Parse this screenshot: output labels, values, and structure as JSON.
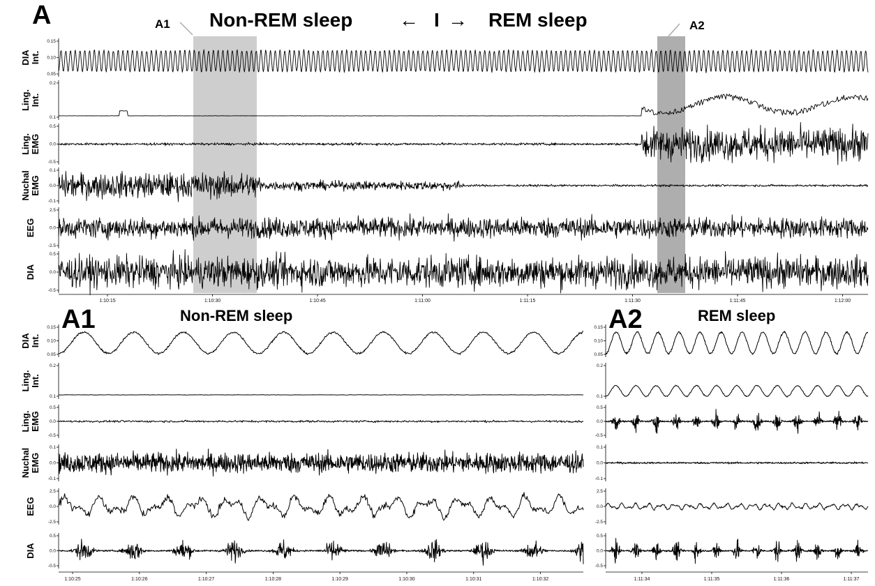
{
  "figure": {
    "panel_a": {
      "letter": "A",
      "title_left": "Non-REM sleep",
      "title_right": "REM sleep",
      "arrow_left": "←",
      "divider": "I",
      "arrow_right": "→",
      "inset_labels": [
        "A1",
        "A2"
      ]
    },
    "panel_a1": {
      "letter": "A1",
      "title": "Non-REM sleep"
    },
    "panel_a2": {
      "letter": "A2",
      "title": "REM sleep"
    }
  },
  "chart_data": [
    {
      "type": "line",
      "panel": "A",
      "x_range": [
        "1:10:08",
        "1:12:04"
      ],
      "x_ticks": [
        "1:10:15",
        "1:10:30",
        "1:10:45",
        "1:11:00",
        "1:11:15",
        "1:11:30",
        "1:11:45",
        "1:12:00"
      ],
      "highlight_regions": [
        {
          "label": "A1",
          "color": "#bdbdbd"
        },
        {
          "label": "A2",
          "color": "#8c8c8c"
        }
      ],
      "channels": [
        {
          "label": [
            "DIA",
            "Int."
          ],
          "ylim": [
            0.02,
            0.17
          ],
          "y_ticks": [
            "0.15",
            "0.10",
            "0.05"
          ]
        },
        {
          "label": [
            "Ling.",
            "Int."
          ],
          "ylim": [
            0.0,
            0.27
          ],
          "y_ticks": [
            "0.2",
            "0.1"
          ]
        },
        {
          "label": [
            "Ling.",
            "EMG"
          ],
          "ylim": [
            -0.7,
            0.7
          ],
          "y_ticks": [
            "0.5",
            "0.0",
            "-0.5"
          ]
        },
        {
          "label": [
            "Nuchal",
            "EMG"
          ],
          "ylim": [
            -0.18,
            0.18
          ],
          "y_ticks": [
            "0.1",
            "0.0",
            "-0.1"
          ]
        },
        {
          "label": [
            "EEG"
          ],
          "ylim": [
            -4,
            4
          ],
          "y_ticks": [
            "2.5",
            "0.0",
            "-2.5"
          ]
        },
        {
          "label": [
            "DIA"
          ],
          "ylim": [
            -0.8,
            0.8
          ],
          "y_ticks": [
            "0.5",
            "0.0",
            "-0.5"
          ]
        }
      ]
    },
    {
      "type": "line",
      "panel": "A1",
      "x_ticks": [
        "1:10:25",
        "1:10:26",
        "1:10:27",
        "1:10:28",
        "1:10:29",
        "1:10:30",
        "1:10:31",
        "1:10:32"
      ],
      "channels": [
        {
          "label": [
            "DIA",
            "Int."
          ],
          "ylim": [
            0.02,
            0.18
          ],
          "y_ticks": [
            "0.15",
            "0.10",
            "0.05"
          ]
        },
        {
          "label": [
            "Ling.",
            "Int."
          ],
          "ylim": [
            0.0,
            0.27
          ],
          "y_ticks": [
            "0.2",
            "0.1"
          ]
        },
        {
          "label": [
            "Ling.",
            "EMG"
          ],
          "ylim": [
            -0.7,
            0.7
          ],
          "y_ticks": [
            "0.5",
            "0.0",
            "-0.5"
          ]
        },
        {
          "label": [
            "Nuchal",
            "EMG"
          ],
          "ylim": [
            -0.16,
            0.16
          ],
          "y_ticks": [
            "0.1",
            "0.0",
            "-0.1"
          ]
        },
        {
          "label": [
            "EEG"
          ],
          "ylim": [
            -4,
            4
          ],
          "y_ticks": [
            "2.5",
            "0.0",
            "-2.5"
          ]
        },
        {
          "label": [
            "DIA"
          ],
          "ylim": [
            -0.8,
            0.8
          ],
          "y_ticks": [
            "0.5",
            "0.0",
            "-0.5"
          ]
        }
      ]
    },
    {
      "type": "line",
      "panel": "A2",
      "x_ticks": [
        "1:11:34",
        "1:11:35",
        "1:11:36",
        "1:11:37"
      ],
      "channels": [
        {
          "y_ticks": [
            "0.15",
            "0.10",
            "0.05"
          ]
        },
        {
          "y_ticks": [
            "0.2",
            "0.1"
          ]
        },
        {
          "y_ticks": [
            "0.5",
            "0.0",
            "-0.5"
          ]
        },
        {
          "y_ticks": [
            "0.1",
            "0.0",
            "-0.1"
          ]
        },
        {
          "y_ticks": [
            "2.5",
            "0.0",
            "-2.5"
          ]
        },
        {
          "y_ticks": [
            "0.5",
            "0.0",
            "-0.5"
          ]
        }
      ]
    }
  ]
}
